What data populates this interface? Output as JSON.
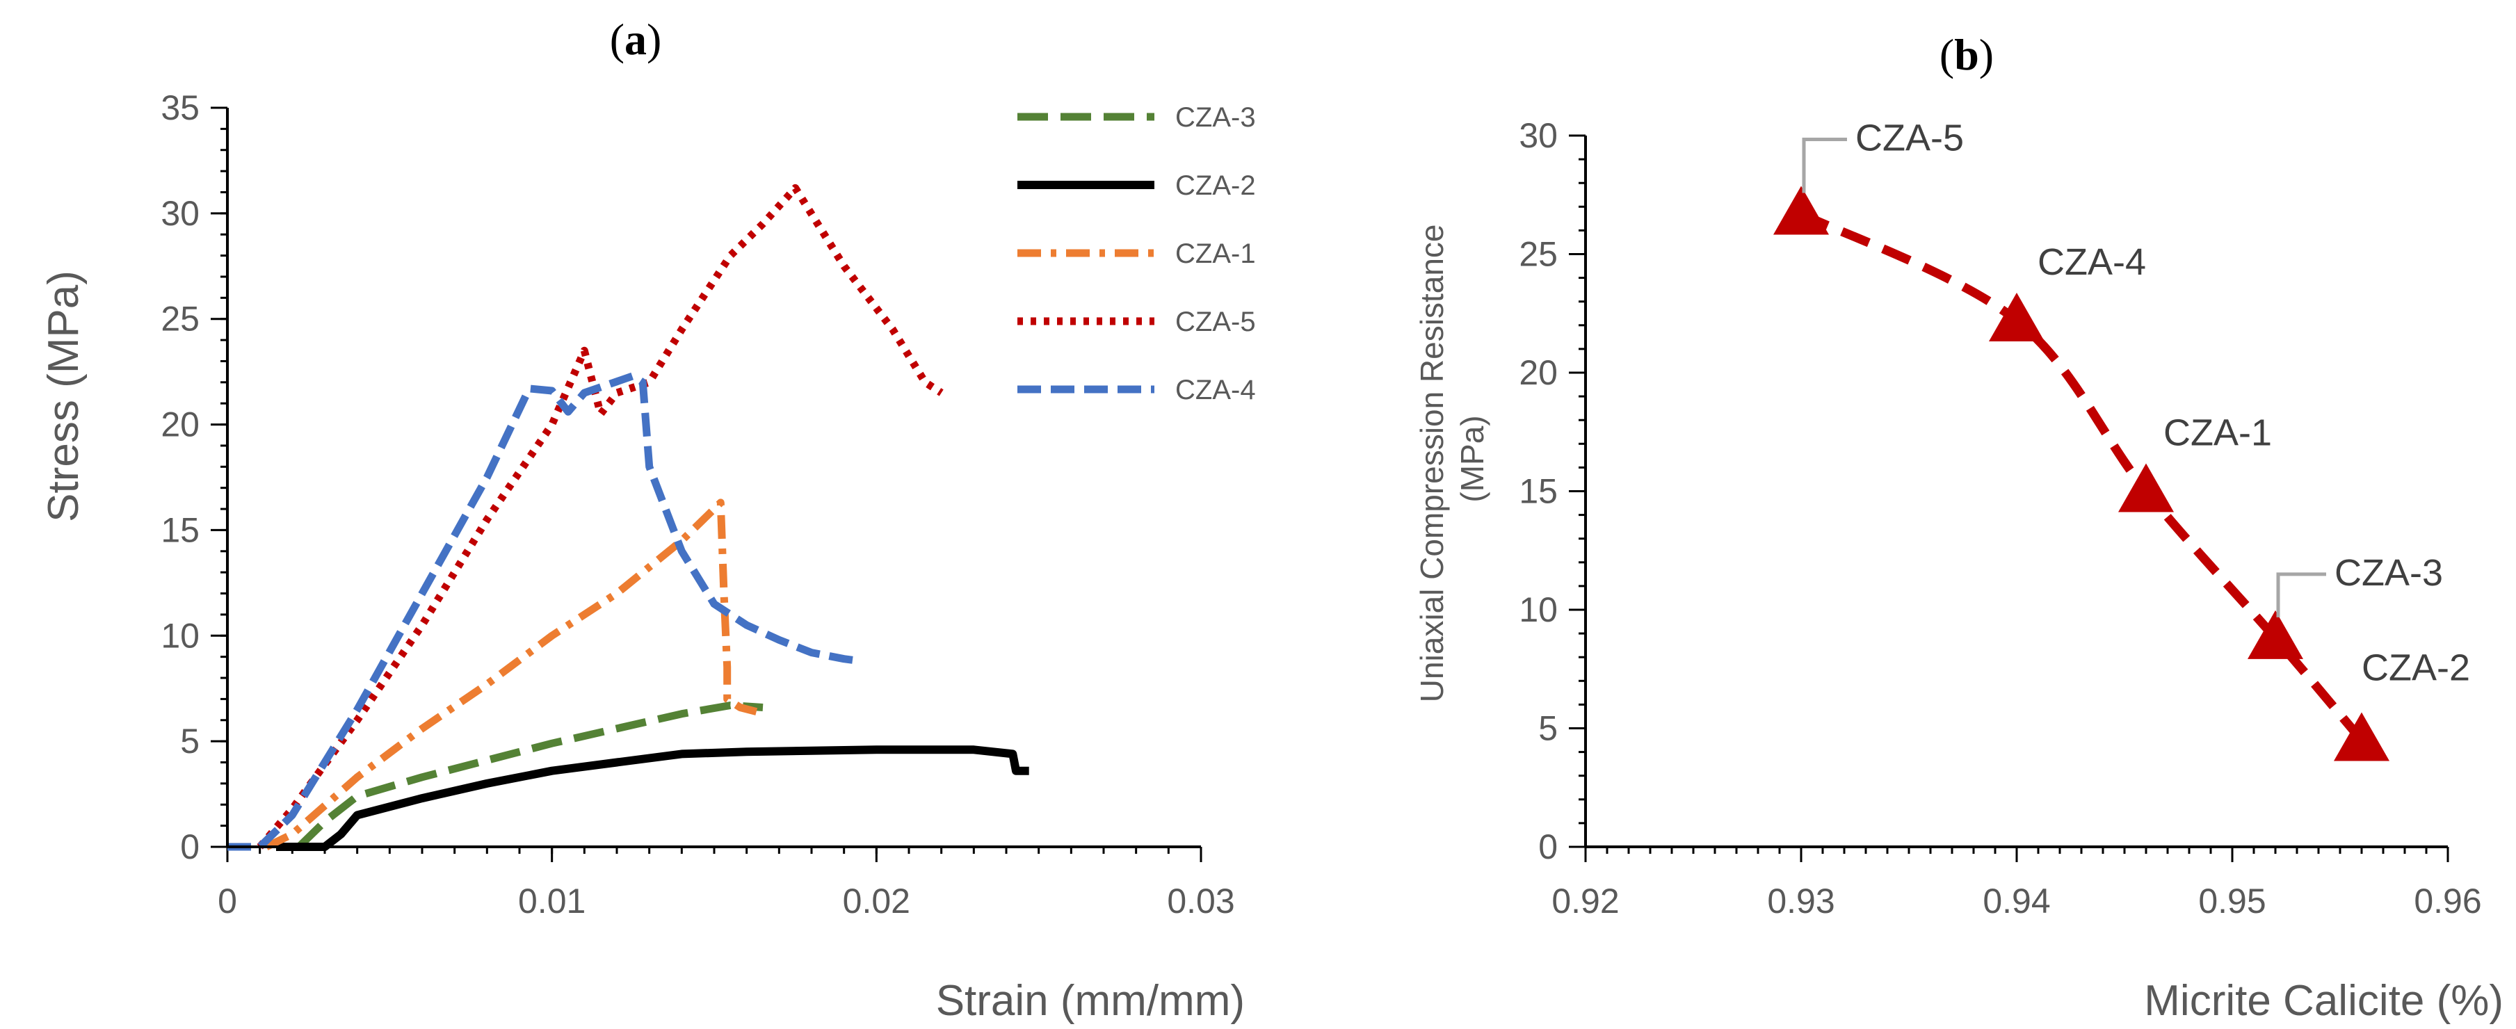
{
  "chart_data": [
    {
      "type": "line",
      "panel_label_prefix": "(",
      "panel_label_letter": "a",
      "panel_label_suffix": ")",
      "title": "",
      "xlabel": "Strain (mm/mm)",
      "ylabel": "Stress (MPa)",
      "xlim": [
        0,
        0.03
      ],
      "ylim": [
        0,
        35
      ],
      "xticks": [
        "0",
        "0.01",
        "0.02",
        "0.03"
      ],
      "xtick_values": [
        0,
        0.01,
        0.02,
        0.03
      ],
      "yticks": [
        "0",
        "5",
        "10",
        "15",
        "20",
        "25",
        "30",
        "35"
      ],
      "ytick_values": [
        0,
        5,
        10,
        15,
        20,
        25,
        30,
        35
      ],
      "grid": false,
      "legend_position": "top-right",
      "series": [
        {
          "name": "CZA-3",
          "color": "#548235",
          "style": "long-dash",
          "points": [
            [
              0.0022,
              0
            ],
            [
              0.003,
              1.2
            ],
            [
              0.004,
              2.4
            ],
            [
              0.006,
              3.3
            ],
            [
              0.008,
              4.1
            ],
            [
              0.01,
              4.9
            ],
            [
              0.012,
              5.6
            ],
            [
              0.014,
              6.3
            ],
            [
              0.0155,
              6.7
            ],
            [
              0.0165,
              6.6
            ]
          ]
        },
        {
          "name": "CZA-2",
          "color": "#000000",
          "style": "solid",
          "points": [
            [
              0.0015,
              0
            ],
            [
              0.003,
              0
            ],
            [
              0.0035,
              0.6
            ],
            [
              0.004,
              1.5
            ],
            [
              0.006,
              2.3
            ],
            [
              0.008,
              3.0
            ],
            [
              0.01,
              3.6
            ],
            [
              0.012,
              4.0
            ],
            [
              0.014,
              4.4
            ],
            [
              0.016,
              4.5
            ],
            [
              0.018,
              4.55
            ],
            [
              0.02,
              4.6
            ],
            [
              0.023,
              4.6
            ],
            [
              0.0242,
              4.4
            ],
            [
              0.0243,
              3.6
            ],
            [
              0.0247,
              3.6
            ]
          ]
        },
        {
          "name": "CZA-1",
          "color": "#ED7D31",
          "style": "dash-dot",
          "points": [
            [
              0.0012,
              0
            ],
            [
              0.002,
              0.6
            ],
            [
              0.004,
              3.3
            ],
            [
              0.006,
              5.6
            ],
            [
              0.008,
              7.7
            ],
            [
              0.01,
              10.0
            ],
            [
              0.012,
              12.0
            ],
            [
              0.014,
              14.5
            ],
            [
              0.0152,
              16.3
            ],
            [
              0.0153,
              12.0
            ],
            [
              0.0154,
              8.5
            ],
            [
              0.0154,
              7.0
            ],
            [
              0.0158,
              6.6
            ],
            [
              0.0163,
              6.4
            ]
          ]
        },
        {
          "name": "CZA-5",
          "color": "#C00000",
          "style": "dotted",
          "points": [
            [
              0.001,
              0
            ],
            [
              0.002,
              1.8
            ],
            [
              0.004,
              6.0
            ],
            [
              0.006,
              10.5
            ],
            [
              0.008,
              15.5
            ],
            [
              0.01,
              20.0
            ],
            [
              0.011,
              23.5
            ],
            [
              0.0115,
              20.5
            ],
            [
              0.012,
              21.5
            ],
            [
              0.013,
              22.0
            ],
            [
              0.014,
              24.5
            ],
            [
              0.0155,
              28.0
            ],
            [
              0.0165,
              29.5
            ],
            [
              0.0175,
              31.2
            ],
            [
              0.019,
              27.5
            ],
            [
              0.0205,
              24.5
            ],
            [
              0.0215,
              22.0
            ],
            [
              0.022,
              21.5
            ]
          ]
        },
        {
          "name": "CZA-4",
          "color": "#4472C4",
          "style": "dash",
          "points": [
            [
              0,
              0
            ],
            [
              0.001,
              0
            ],
            [
              0.002,
              1.5
            ],
            [
              0.004,
              6.5
            ],
            [
              0.006,
              12.0
            ],
            [
              0.008,
              17.5
            ],
            [
              0.0093,
              21.7
            ],
            [
              0.01,
              21.6
            ],
            [
              0.0105,
              20.6
            ],
            [
              0.011,
              21.5
            ],
            [
              0.0125,
              22.3
            ],
            [
              0.0128,
              22.0
            ],
            [
              0.013,
              18.0
            ],
            [
              0.014,
              14.0
            ],
            [
              0.015,
              11.5
            ],
            [
              0.016,
              10.5
            ],
            [
              0.017,
              9.8
            ],
            [
              0.018,
              9.2
            ],
            [
              0.019,
              8.9
            ],
            [
              0.0195,
              8.8
            ]
          ]
        }
      ]
    },
    {
      "type": "scatter",
      "panel_label_prefix": "(",
      "panel_label_letter": "b",
      "panel_label_suffix": ")",
      "title": "",
      "xlabel": "Micrite Calicite (%)",
      "ylabel_line1": "Uniaxial Compression Resistance",
      "ylabel_line2": "(MPa)",
      "xlim": [
        0.92,
        0.96
      ],
      "ylim": [
        0,
        30
      ],
      "xticks": [
        "0.92",
        "0.93",
        "0.94",
        "0.95",
        "0.96"
      ],
      "xtick_values": [
        0.92,
        0.93,
        0.94,
        0.95,
        0.96
      ],
      "yticks": [
        "0",
        "5",
        "10",
        "15",
        "20",
        "25",
        "30"
      ],
      "ytick_values": [
        0,
        5,
        10,
        15,
        20,
        25,
        30
      ],
      "grid": false,
      "marker": "triangle",
      "marker_color": "#C00000",
      "trend_line": "dashed",
      "points": [
        {
          "label": "CZA-5",
          "x": 0.93,
          "y": 26.7
        },
        {
          "label": "CZA-4",
          "x": 0.94,
          "y": 22.2
        },
        {
          "label": "CZA-1",
          "x": 0.946,
          "y": 15.0
        },
        {
          "label": "CZA-3",
          "x": 0.952,
          "y": 8.8
        },
        {
          "label": "CZA-2",
          "x": 0.956,
          "y": 4.5
        }
      ]
    }
  ]
}
